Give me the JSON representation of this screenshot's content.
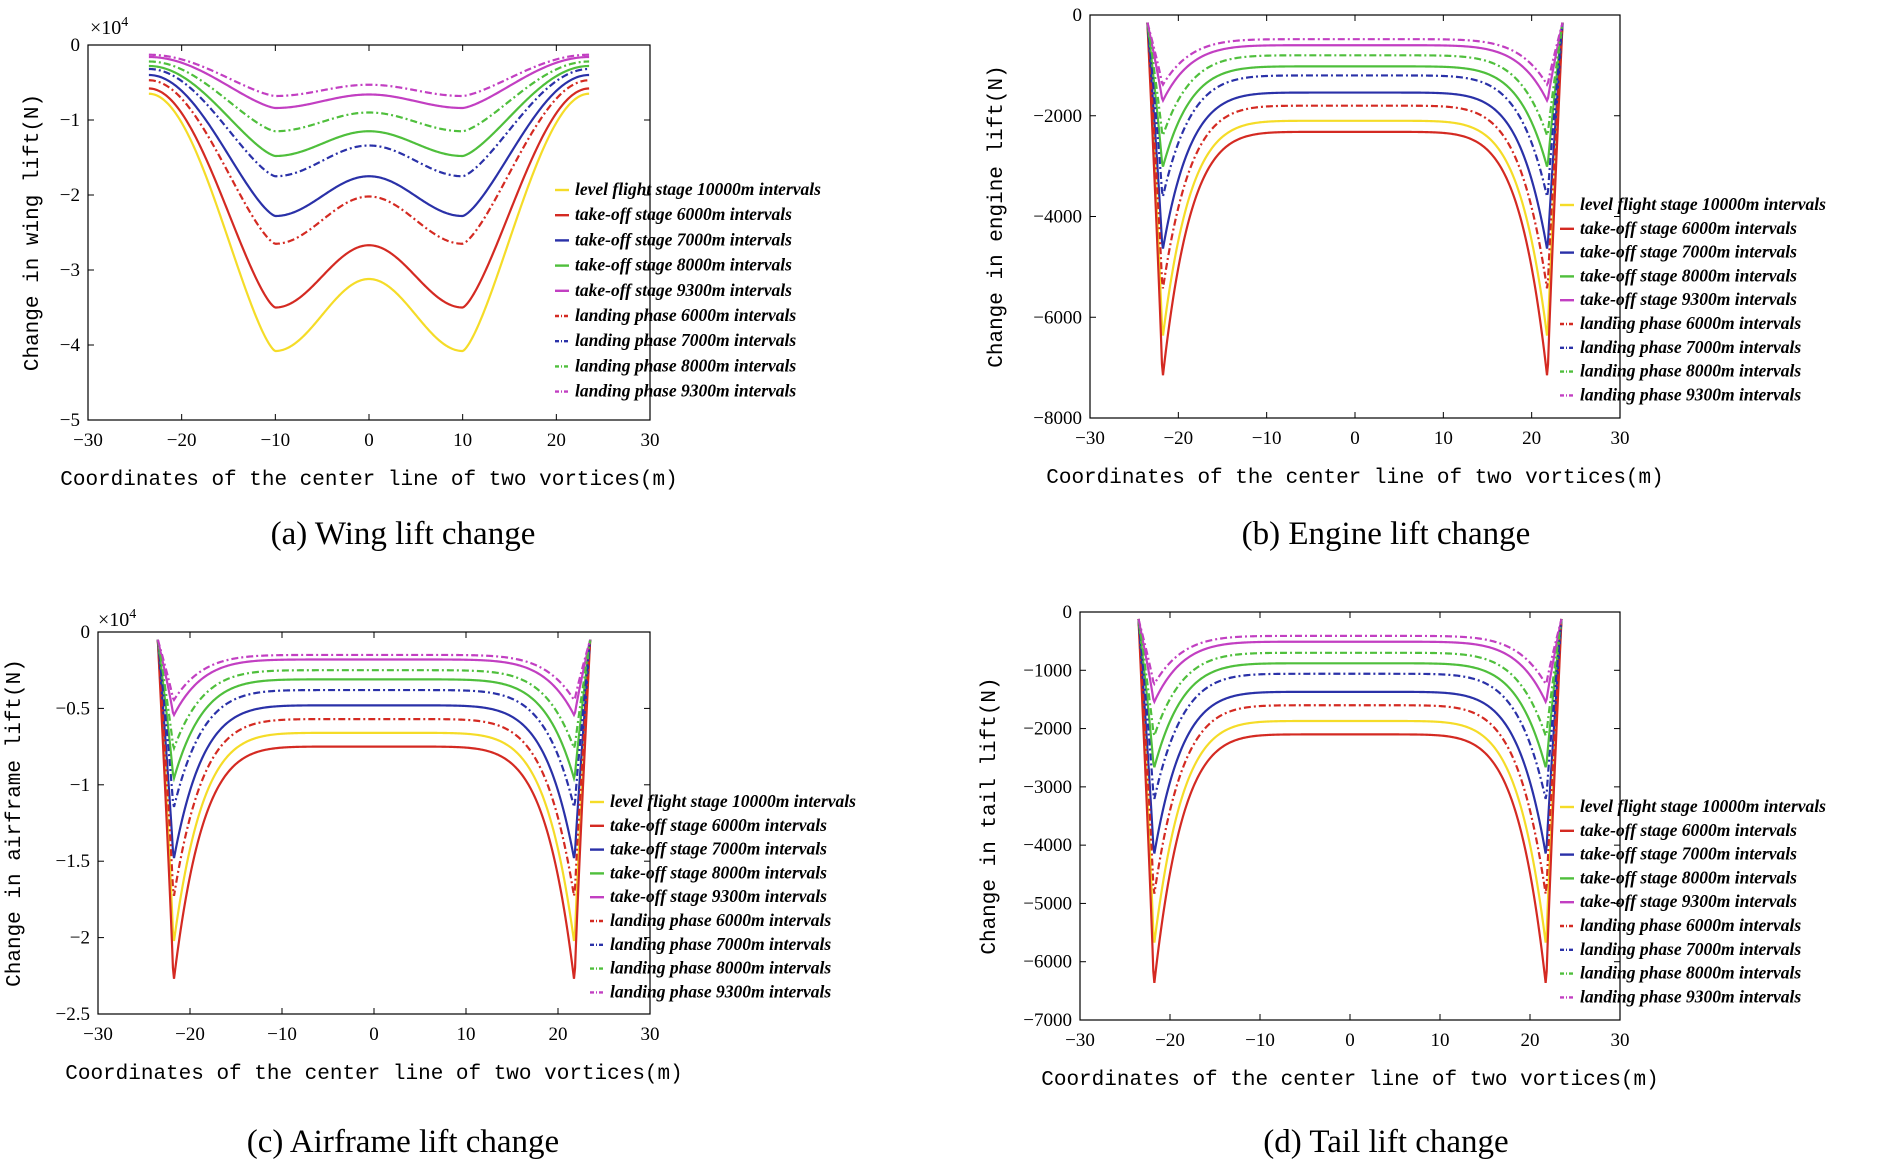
{
  "chart_data": [
    {
      "id": "a",
      "type": "line",
      "caption": "(a) Wing lift change",
      "xlabel": "Coordinates of the center line of two vortices(m)",
      "ylabel": "Change in wing lift(N)",
      "exponent_label": "×10",
      "exponent_power": "4",
      "xlim": [
        -30,
        30
      ],
      "ylim": [
        -5,
        0
      ],
      "xticks": [
        -30,
        -20,
        -10,
        0,
        10,
        20,
        30
      ],
      "yticks": [
        0,
        -1,
        -2,
        -3,
        -4,
        -5
      ],
      "ytick_labels": [
        "0",
        "−1",
        "−2",
        "−3",
        "−4",
        "−5"
      ],
      "xtick_labels": [
        "−30",
        "−20",
        "−10",
        "0",
        "10",
        "20",
        "30"
      ],
      "shape": "wing",
      "x_end": 23.5,
      "series": [
        {
          "name": "level flight stage 10000m intervals",
          "color": "#f5dc28",
          "dash": "solid",
          "peak": -4.08,
          "center": -3.12,
          "end": -0.65
        },
        {
          "name": "take-off stage 6000m intervals",
          "color": "#d42a22",
          "dash": "solid",
          "peak": -3.5,
          "center": -2.67,
          "end": -0.58
        },
        {
          "name": "take-off stage 7000m intervals",
          "color": "#2a31a8",
          "dash": "solid",
          "peak": -2.28,
          "center": -1.75,
          "end": -0.4
        },
        {
          "name": "take-off stage 8000m intervals",
          "color": "#4fbf3c",
          "dash": "solid",
          "peak": -1.48,
          "center": -1.15,
          "end": -0.28
        },
        {
          "name": "take-off stage 9300m intervals",
          "color": "#c23fc2",
          "dash": "solid",
          "peak": -0.84,
          "center": -0.66,
          "end": -0.16
        },
        {
          "name": "landing phase 6000m intervals",
          "color": "#d42a22",
          "dash": "dashdot",
          "peak": -2.65,
          "center": -2.02,
          "end": -0.47
        },
        {
          "name": "landing phase 7000m intervals",
          "color": "#2a31a8",
          "dash": "dashdot",
          "peak": -1.75,
          "center": -1.34,
          "end": -0.32
        },
        {
          "name": "landing phase 8000m intervals",
          "color": "#4fbf3c",
          "dash": "dashdot",
          "peak": -1.15,
          "center": -0.9,
          "end": -0.22
        },
        {
          "name": "landing phase 9300m intervals",
          "color": "#c23fc2",
          "dash": "dashdot",
          "peak": -0.68,
          "center": -0.53,
          "end": -0.13
        }
      ]
    },
    {
      "id": "b",
      "type": "line",
      "caption": "(b) Engine lift change",
      "xlabel": "Coordinates of the center line of two vortices(m)",
      "ylabel": "Change in engine lift(N)",
      "xlim": [
        -30,
        30
      ],
      "ylim": [
        -8000,
        0
      ],
      "xticks": [
        -30,
        -20,
        -10,
        0,
        10,
        20,
        30
      ],
      "yticks": [
        0,
        -2000,
        -4000,
        -6000,
        -8000
      ],
      "ytick_labels": [
        "0",
        "−2000",
        "−4000",
        "−6000",
        "−8000"
      ],
      "xtick_labels": [
        "−30",
        "−20",
        "−10",
        "0",
        "10",
        "20",
        "30"
      ],
      "shape": "u",
      "x_end": 23.5,
      "x_peak": 21.8,
      "series": [
        {
          "name": "level flight stage 10000m intervals",
          "color": "#f5dc28",
          "dash": "solid",
          "peak": -6450,
          "center": -2100,
          "end": -150
        },
        {
          "name": "take-off stage 6000m intervals",
          "color": "#d42a22",
          "dash": "solid",
          "peak": -7250,
          "center": -2320,
          "end": -150
        },
        {
          "name": "take-off stage 7000m intervals",
          "color": "#2a31a8",
          "dash": "solid",
          "peak": -4700,
          "center": -1540,
          "end": -150
        },
        {
          "name": "take-off stage 8000m intervals",
          "color": "#4fbf3c",
          "dash": "solid",
          "peak": -3050,
          "center": -1020,
          "end": -150
        },
        {
          "name": "take-off stage 9300m intervals",
          "color": "#c23fc2",
          "dash": "solid",
          "peak": -1720,
          "center": -600,
          "end": -150
        },
        {
          "name": "landing phase 6000m intervals",
          "color": "#d42a22",
          "dash": "dashdot",
          "peak": -5500,
          "center": -1800,
          "end": -150
        },
        {
          "name": "landing phase 7000m intervals",
          "color": "#2a31a8",
          "dash": "dashdot",
          "peak": -3650,
          "center": -1200,
          "end": -150
        },
        {
          "name": "landing phase 8000m intervals",
          "color": "#4fbf3c",
          "dash": "dashdot",
          "peak": -2420,
          "center": -800,
          "end": -150
        },
        {
          "name": "landing phase 9300m intervals",
          "color": "#c23fc2",
          "dash": "dashdot",
          "peak": -1400,
          "center": -480,
          "end": -150
        }
      ]
    },
    {
      "id": "c",
      "type": "line",
      "caption": "(c) Airframe lift change",
      "xlabel": "Coordinates of the center line of two vortices(m)",
      "ylabel": "Change in airframe lift(N)",
      "exponent_label": "×10",
      "exponent_power": "4",
      "xlim": [
        -30,
        30
      ],
      "ylim": [
        -2.5,
        0
      ],
      "xticks": [
        -30,
        -20,
        -10,
        0,
        10,
        20,
        30
      ],
      "yticks": [
        0,
        -0.5,
        -1,
        -1.5,
        -2,
        -2.5
      ],
      "ytick_labels": [
        "0",
        "−0.5",
        "−1",
        "−1.5",
        "−2",
        "−2.5"
      ],
      "xtick_labels": [
        "−30",
        "−20",
        "−10",
        "0",
        "10",
        "20",
        "30"
      ],
      "shape": "u",
      "x_end": 23.5,
      "x_peak": 21.8,
      "series": [
        {
          "name": "level flight stage 10000m intervals",
          "color": "#f5dc28",
          "dash": "solid",
          "peak": -2.05,
          "center": -0.66,
          "end": -0.05
        },
        {
          "name": "take-off stage 6000m intervals",
          "color": "#d42a22",
          "dash": "solid",
          "peak": -2.3,
          "center": -0.75,
          "end": -0.05
        },
        {
          "name": "take-off stage 7000m intervals",
          "color": "#2a31a8",
          "dash": "solid",
          "peak": -1.5,
          "center": -0.48,
          "end": -0.05
        },
        {
          "name": "take-off stage 8000m intervals",
          "color": "#4fbf3c",
          "dash": "solid",
          "peak": -0.97,
          "center": -0.31,
          "end": -0.05
        },
        {
          "name": "take-off stage 9300m intervals",
          "color": "#c23fc2",
          "dash": "solid",
          "peak": -0.55,
          "center": -0.18,
          "end": -0.05
        },
        {
          "name": "landing phase 6000m intervals",
          "color": "#d42a22",
          "dash": "dashdot",
          "peak": -1.75,
          "center": -0.57,
          "end": -0.05
        },
        {
          "name": "landing phase 7000m intervals",
          "color": "#2a31a8",
          "dash": "dashdot",
          "peak": -1.16,
          "center": -0.38,
          "end": -0.05
        },
        {
          "name": "landing phase 8000m intervals",
          "color": "#4fbf3c",
          "dash": "dashdot",
          "peak": -0.77,
          "center": -0.25,
          "end": -0.05
        },
        {
          "name": "landing phase 9300m intervals",
          "color": "#c23fc2",
          "dash": "dashdot",
          "peak": -0.45,
          "center": -0.15,
          "end": -0.05
        }
      ]
    },
    {
      "id": "d",
      "type": "line",
      "caption": "(d) Tail lift change",
      "xlabel": "Coordinates of the center line of two vortices(m)",
      "ylabel": "Change in tail lift(N)",
      "xlim": [
        -30,
        30
      ],
      "ylim": [
        -7000,
        0
      ],
      "xticks": [
        -30,
        -20,
        -10,
        0,
        10,
        20,
        30
      ],
      "yticks": [
        0,
        -1000,
        -2000,
        -3000,
        -4000,
        -5000,
        -6000,
        -7000
      ],
      "ytick_labels": [
        "0",
        "−1000",
        "−2000",
        "−3000",
        "−4000",
        "−5000",
        "−6000",
        "−7000"
      ],
      "xtick_labels": [
        "−30",
        "−20",
        "−10",
        "0",
        "10",
        "20",
        "30"
      ],
      "shape": "u",
      "x_end": 23.5,
      "x_peak": 21.8,
      "series": [
        {
          "name": "level flight stage 10000m intervals",
          "color": "#f5dc28",
          "dash": "solid",
          "peak": -5750,
          "center": -1870,
          "end": -120
        },
        {
          "name": "take-off stage 6000m intervals",
          "color": "#d42a22",
          "dash": "solid",
          "peak": -6450,
          "center": -2100,
          "end": -120
        },
        {
          "name": "take-off stage 7000m intervals",
          "color": "#2a31a8",
          "dash": "solid",
          "peak": -4200,
          "center": -1370,
          "end": -120
        },
        {
          "name": "take-off stage 8000m intervals",
          "color": "#4fbf3c",
          "dash": "solid",
          "peak": -2700,
          "center": -880,
          "end": -120
        },
        {
          "name": "take-off stage 9300m intervals",
          "color": "#c23fc2",
          "dash": "solid",
          "peak": -1560,
          "center": -510,
          "end": -120
        },
        {
          "name": "landing phase 6000m intervals",
          "color": "#d42a22",
          "dash": "dashdot",
          "peak": -4900,
          "center": -1600,
          "end": -120
        },
        {
          "name": "landing phase 7000m intervals",
          "color": "#2a31a8",
          "dash": "dashdot",
          "peak": -3250,
          "center": -1060,
          "end": -120
        },
        {
          "name": "landing phase 8000m intervals",
          "color": "#4fbf3c",
          "dash": "dashdot",
          "peak": -2150,
          "center": -700,
          "end": -120
        },
        {
          "name": "landing phase 9300m intervals",
          "color": "#c23fc2",
          "dash": "dashdot",
          "peak": -1250,
          "center": -410,
          "end": -120
        }
      ]
    }
  ]
}
